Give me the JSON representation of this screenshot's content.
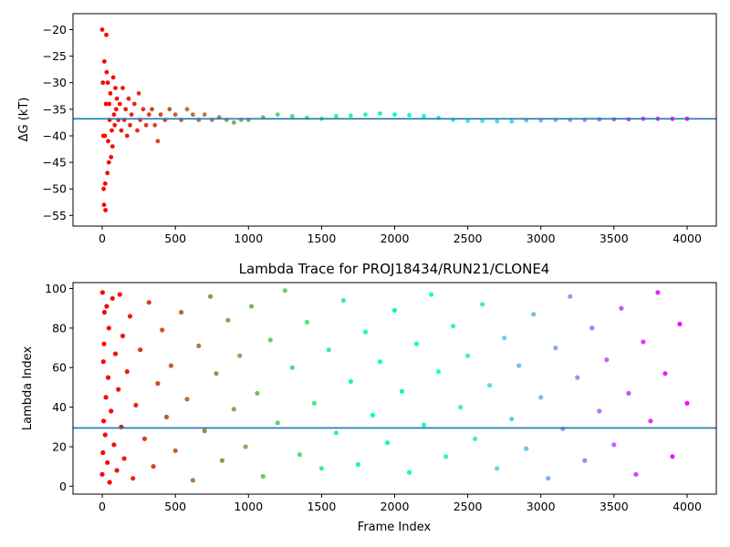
{
  "chart_data": [
    {
      "type": "scatter",
      "title": "",
      "xlabel": "",
      "ylabel": "ΔG (kT)",
      "xlim": [
        -200,
        4200
      ],
      "ylim": [
        -57,
        -17
      ],
      "x_ticks": [
        0,
        500,
        1000,
        1500,
        2000,
        2500,
        3000,
        3500,
        4000
      ],
      "y_ticks": [
        -55,
        -50,
        -45,
        -40,
        -35,
        -30,
        -25,
        -20
      ],
      "y_tick_labels": [
        "−55",
        "−50",
        "−45",
        "−40",
        "−35",
        "−30",
        "−25",
        "−20"
      ],
      "hline": {
        "y": -36.8,
        "color": "#1f77b4"
      },
      "colormap": "rainbow (red at frame 0 to violet at frame 4000)",
      "series": [
        {
          "points": [
            [
              0,
              -20
            ],
            [
              5,
              -30
            ],
            [
              8,
              -40
            ],
            [
              10,
              -50
            ],
            [
              12,
              -53
            ],
            [
              15,
              -26
            ],
            [
              18,
              -40
            ],
            [
              20,
              -49
            ],
            [
              22,
              -54
            ],
            [
              25,
              -34
            ],
            [
              28,
              -21
            ],
            [
              30,
              -28
            ],
            [
              35,
              -47
            ],
            [
              38,
              -30
            ],
            [
              40,
              -41
            ],
            [
              45,
              -45
            ],
            [
              48,
              -34
            ],
            [
              50,
              -37
            ],
            [
              55,
              -32
            ],
            [
              60,
              -44
            ],
            [
              65,
              -39
            ],
            [
              70,
              -42
            ],
            [
              75,
              -29
            ],
            [
              80,
              -36
            ],
            [
              85,
              -38
            ],
            [
              90,
              -31
            ],
            [
              95,
              -35
            ],
            [
              100,
              -33
            ],
            [
              110,
              -37
            ],
            [
              120,
              -34
            ],
            [
              130,
              -39
            ],
            [
              140,
              -31
            ],
            [
              150,
              -37
            ],
            [
              160,
              -35
            ],
            [
              170,
              -40
            ],
            [
              180,
              -33
            ],
            [
              190,
              -38
            ],
            [
              200,
              -36
            ],
            [
              220,
              -34
            ],
            [
              240,
              -39
            ],
            [
              250,
              -32
            ],
            [
              260,
              -37
            ],
            [
              280,
              -35
            ],
            [
              300,
              -38
            ],
            [
              320,
              -36
            ],
            [
              340,
              -35
            ],
            [
              360,
              -38
            ],
            [
              380,
              -41
            ],
            [
              400,
              -36
            ],
            [
              430,
              -37
            ],
            [
              460,
              -35
            ],
            [
              500,
              -36
            ],
            [
              540,
              -37
            ],
            [
              580,
              -35
            ],
            [
              620,
              -36
            ],
            [
              660,
              -37
            ],
            [
              700,
              -36
            ],
            [
              750,
              -37
            ],
            [
              800,
              -36.5
            ],
            [
              850,
              -37
            ],
            [
              900,
              -37.5
            ],
            [
              950,
              -37
            ],
            [
              1000,
              -37
            ],
            [
              1100,
              -36.5
            ],
            [
              1200,
              -36
            ],
            [
              1300,
              -36.3
            ],
            [
              1400,
              -36.6
            ],
            [
              1500,
              -36.8
            ],
            [
              1600,
              -36.3
            ],
            [
              1700,
              -36.2
            ],
            [
              1800,
              -36
            ],
            [
              1900,
              -35.8
            ],
            [
              2000,
              -36
            ],
            [
              2100,
              -36.1
            ],
            [
              2200,
              -36.3
            ],
            [
              2300,
              -36.6
            ],
            [
              2400,
              -37
            ],
            [
              2500,
              -37.2
            ],
            [
              2600,
              -37.2
            ],
            [
              2700,
              -37.3
            ],
            [
              2800,
              -37.3
            ],
            [
              2900,
              -37.1
            ],
            [
              3000,
              -37.1
            ],
            [
              3100,
              -37
            ],
            [
              3200,
              -37
            ],
            [
              3300,
              -37
            ],
            [
              3400,
              -36.9
            ],
            [
              3500,
              -36.9
            ],
            [
              3600,
              -36.9
            ],
            [
              3700,
              -36.8
            ],
            [
              3800,
              -36.8
            ],
            [
              3900,
              -36.8
            ],
            [
              4000,
              -36.8
            ]
          ]
        }
      ]
    },
    {
      "type": "scatter",
      "title": "Lambda Trace for PROJ18434/RUN21/CLONE4",
      "xlabel": "Frame Index",
      "ylabel": "Lambda Index",
      "xlim": [
        -200,
        4200
      ],
      "ylim": [
        -4,
        103
      ],
      "x_ticks": [
        0,
        500,
        1000,
        1500,
        2000,
        2500,
        3000,
        3500,
        4000
      ],
      "y_ticks": [
        0,
        20,
        40,
        60,
        80,
        100
      ],
      "hline": {
        "y": 29.5,
        "color": "#1f77b4"
      },
      "colormap": "rainbow (red at frame 0 to violet at frame 4000)",
      "series": [
        {
          "points": [
            [
              0,
              6
            ],
            [
              2,
              98
            ],
            [
              5,
              17
            ],
            [
              8,
              63
            ],
            [
              10,
              33
            ],
            [
              12,
              72
            ],
            [
              15,
              88
            ],
            [
              20,
              26
            ],
            [
              25,
              45
            ],
            [
              30,
              91
            ],
            [
              35,
              12
            ],
            [
              40,
              55
            ],
            [
              45,
              80
            ],
            [
              50,
              2
            ],
            [
              60,
              38
            ],
            [
              70,
              95
            ],
            [
              80,
              21
            ],
            [
              90,
              67
            ],
            [
              100,
              8
            ],
            [
              110,
              49
            ],
            [
              120,
              97
            ],
            [
              130,
              30
            ],
            [
              140,
              76
            ],
            [
              150,
              14
            ],
            [
              170,
              58
            ],
            [
              190,
              86
            ],
            [
              210,
              4
            ],
            [
              230,
              41
            ],
            [
              260,
              69
            ],
            [
              290,
              24
            ],
            [
              320,
              93
            ],
            [
              350,
              10
            ],
            [
              380,
              52
            ],
            [
              410,
              79
            ],
            [
              440,
              35
            ],
            [
              470,
              61
            ],
            [
              500,
              18
            ],
            [
              540,
              88
            ],
            [
              580,
              44
            ],
            [
              620,
              3
            ],
            [
              660,
              71
            ],
            [
              700,
              28
            ],
            [
              740,
              96
            ],
            [
              780,
              57
            ],
            [
              820,
              13
            ],
            [
              860,
              84
            ],
            [
              900,
              39
            ],
            [
              940,
              66
            ],
            [
              980,
              20
            ],
            [
              1020,
              91
            ],
            [
              1060,
              47
            ],
            [
              1100,
              5
            ],
            [
              1150,
              74
            ],
            [
              1200,
              32
            ],
            [
              1250,
              99
            ],
            [
              1300,
              60
            ],
            [
              1350,
              16
            ],
            [
              1400,
              83
            ],
            [
              1450,
              42
            ],
            [
              1500,
              9
            ],
            [
              1550,
              69
            ],
            [
              1600,
              27
            ],
            [
              1650,
              94
            ],
            [
              1700,
              53
            ],
            [
              1750,
              11
            ],
            [
              1800,
              78
            ],
            [
              1850,
              36
            ],
            [
              1900,
              63
            ],
            [
              1950,
              22
            ],
            [
              2000,
              89
            ],
            [
              2050,
              48
            ],
            [
              2100,
              7
            ],
            [
              2150,
              72
            ],
            [
              2200,
              31
            ],
            [
              2250,
              97
            ],
            [
              2300,
              58
            ],
            [
              2350,
              15
            ],
            [
              2400,
              81
            ],
            [
              2450,
              40
            ],
            [
              2500,
              66
            ],
            [
              2550,
              24
            ],
            [
              2600,
              92
            ],
            [
              2650,
              51
            ],
            [
              2700,
              9
            ],
            [
              2750,
              75
            ],
            [
              2800,
              34
            ],
            [
              2850,
              61
            ],
            [
              2900,
              19
            ],
            [
              2950,
              87
            ],
            [
              3000,
              45
            ],
            [
              3050,
              4
            ],
            [
              3100,
              70
            ],
            [
              3150,
              29
            ],
            [
              3200,
              96
            ],
            [
              3250,
              55
            ],
            [
              3300,
              13
            ],
            [
              3350,
              80
            ],
            [
              3400,
              38
            ],
            [
              3450,
              64
            ],
            [
              3500,
              21
            ],
            [
              3550,
              90
            ],
            [
              3600,
              47
            ],
            [
              3650,
              6
            ],
            [
              3700,
              73
            ],
            [
              3750,
              33
            ],
            [
              3800,
              98
            ],
            [
              3850,
              57
            ],
            [
              3900,
              15
            ],
            [
              3950,
              82
            ],
            [
              4000,
              42
            ]
          ]
        }
      ]
    }
  ]
}
